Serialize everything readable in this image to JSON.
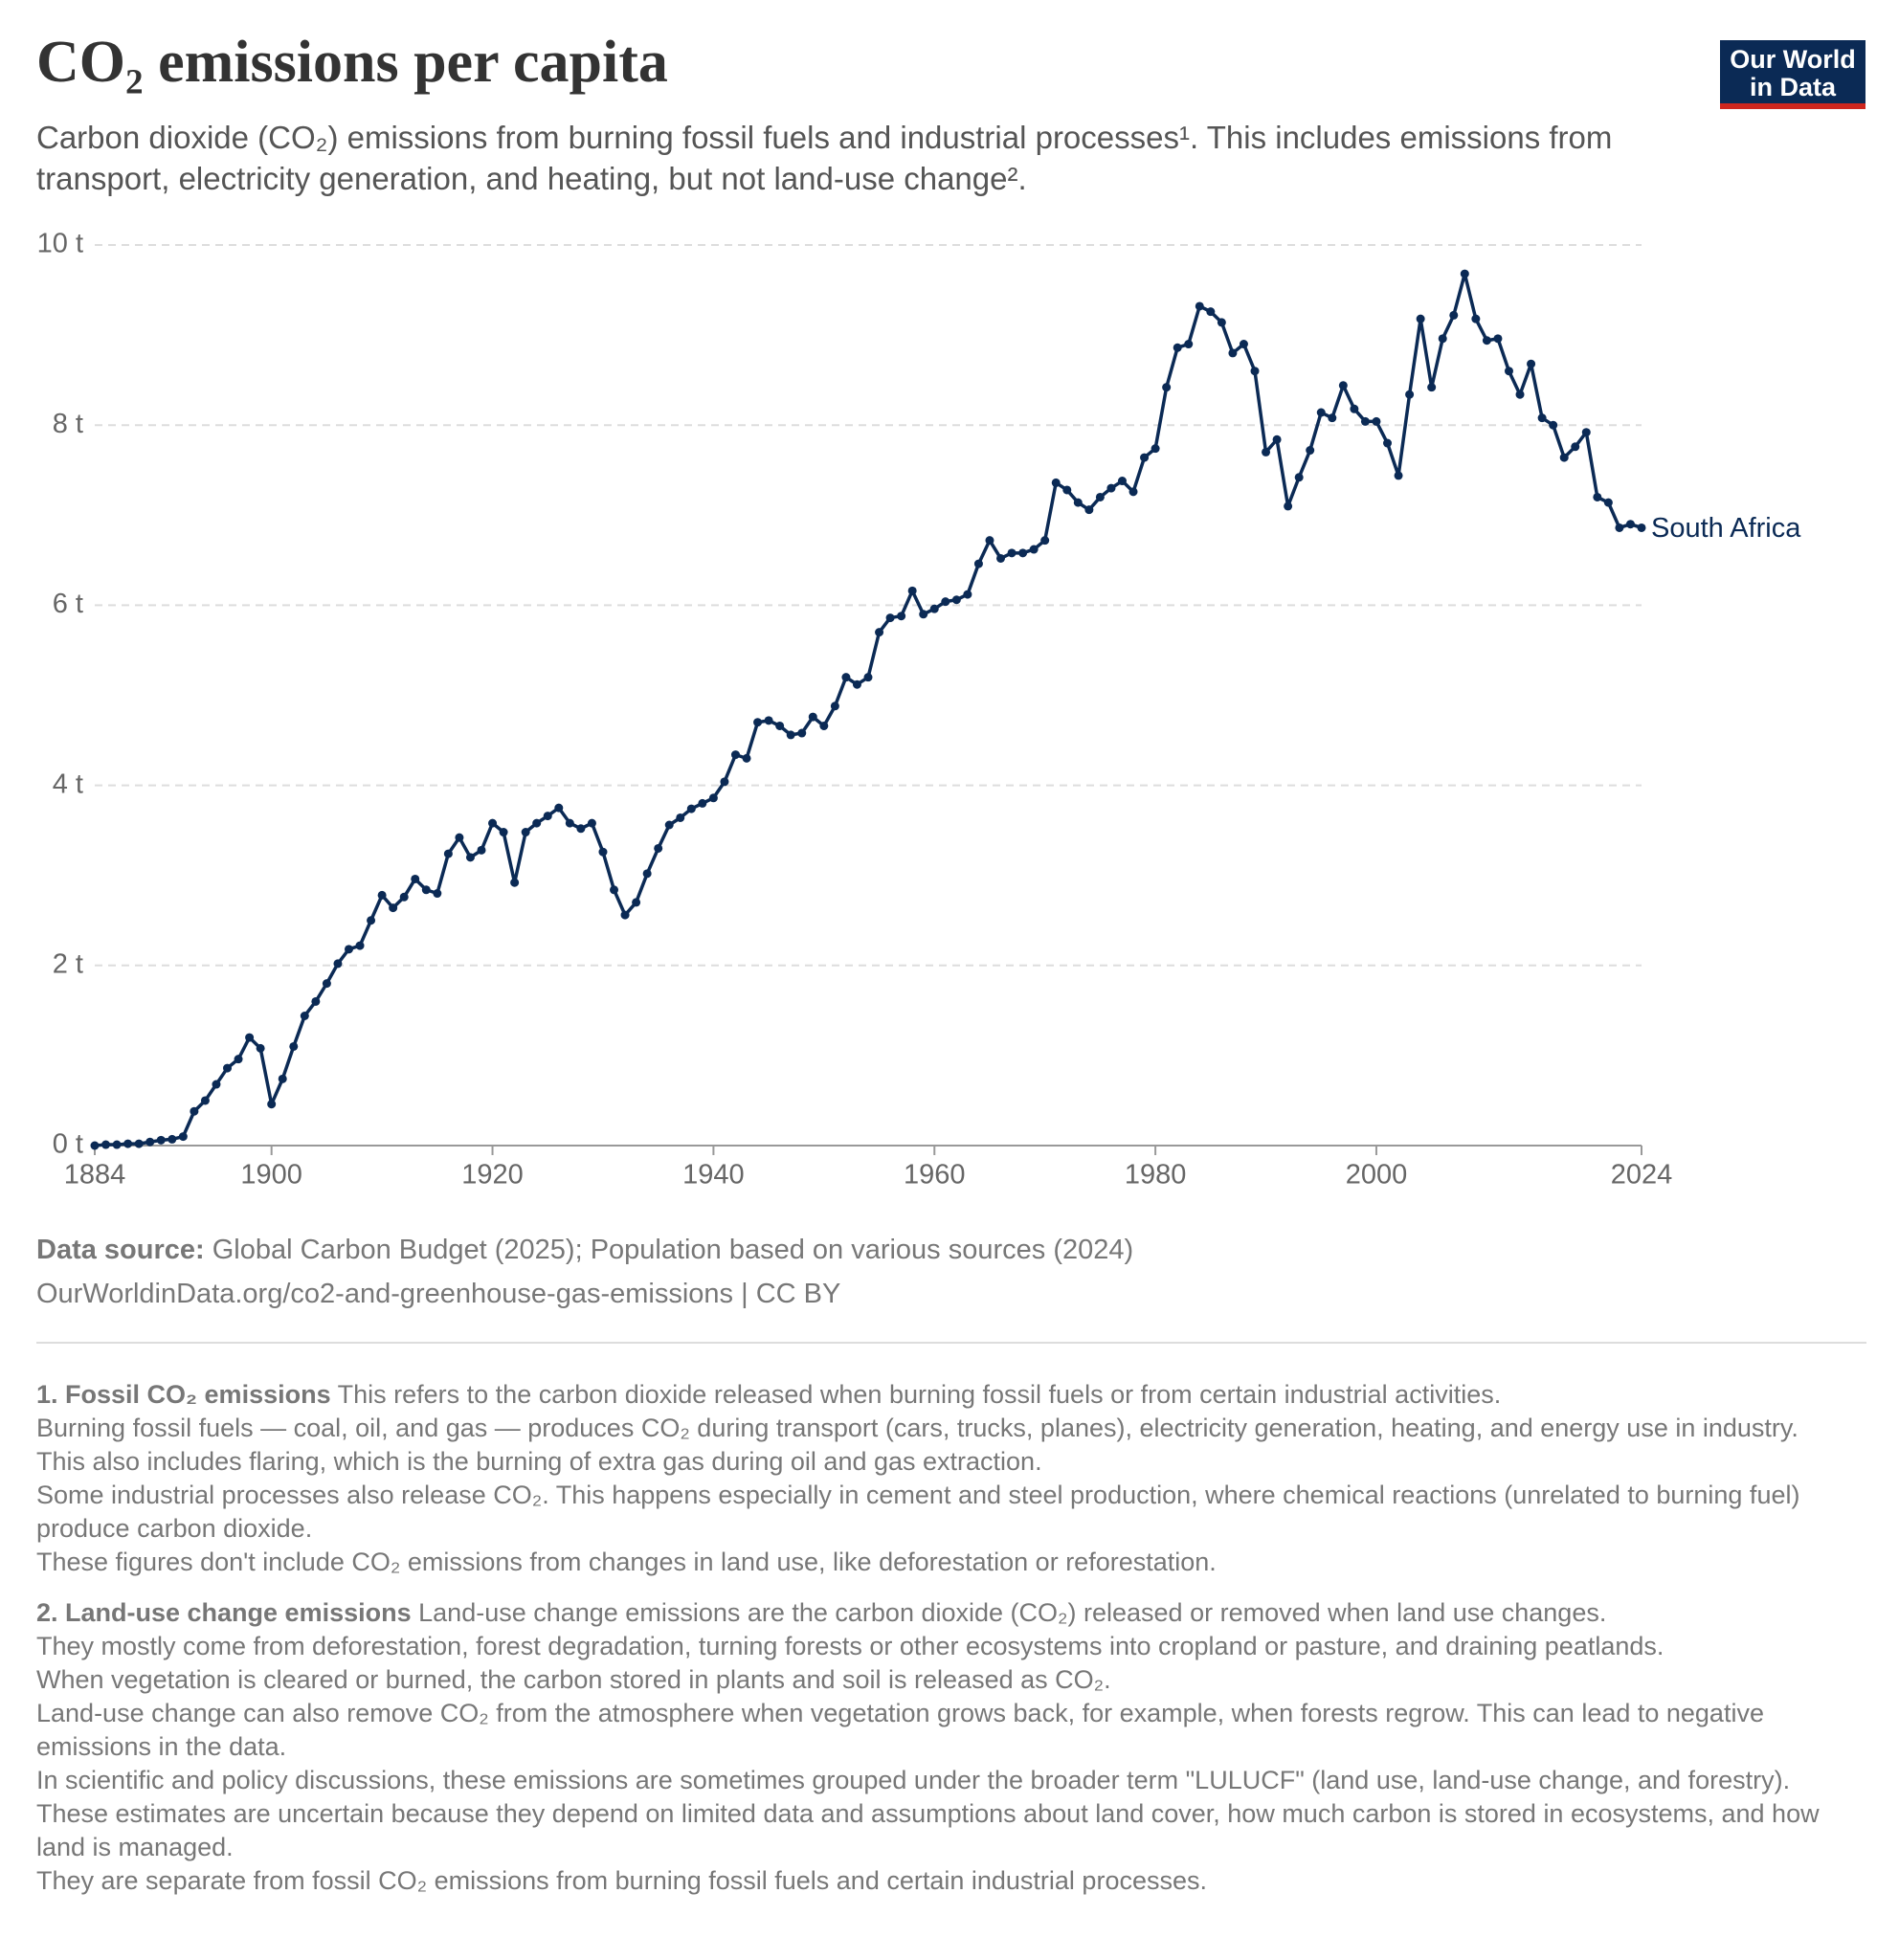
{
  "chart_data": {
    "type": "line",
    "title": "CO₂ emissions per capita",
    "subtitle": "Carbon dioxide (CO₂) emissions from burning fossil fuels and industrial processes¹. This includes emissions from transport, electricity generation, and heating, but not land-use change².",
    "logo": [
      "Our World",
      "in Data"
    ],
    "x": [
      1884,
      1885,
      1886,
      1887,
      1888,
      1889,
      1890,
      1891,
      1892,
      1893,
      1894,
      1895,
      1896,
      1897,
      1898,
      1899,
      1900,
      1901,
      1902,
      1903,
      1904,
      1905,
      1906,
      1907,
      1908,
      1909,
      1910,
      1911,
      1912,
      1913,
      1914,
      1915,
      1916,
      1917,
      1918,
      1919,
      1920,
      1921,
      1922,
      1923,
      1924,
      1925,
      1926,
      1927,
      1928,
      1929,
      1930,
      1931,
      1932,
      1933,
      1934,
      1935,
      1936,
      1937,
      1938,
      1939,
      1940,
      1941,
      1942,
      1943,
      1944,
      1945,
      1946,
      1947,
      1948,
      1949,
      1950,
      1951,
      1952,
      1953,
      1954,
      1955,
      1956,
      1957,
      1958,
      1959,
      1960,
      1961,
      1962,
      1963,
      1964,
      1965,
      1966,
      1967,
      1968,
      1969,
      1970,
      1971,
      1972,
      1973,
      1974,
      1975,
      1976,
      1977,
      1978,
      1979,
      1980,
      1981,
      1982,
      1983,
      1984,
      1985,
      1986,
      1987,
      1988,
      1989,
      1990,
      1991,
      1992,
      1993,
      1994,
      1995,
      1996,
      1997,
      1998,
      1999,
      2000,
      2001,
      2002,
      2003,
      2004,
      2005,
      2006,
      2007,
      2008,
      2009,
      2010,
      2011,
      2012,
      2013,
      2014,
      2015,
      2016,
      2017,
      2018,
      2019,
      2020,
      2021,
      2022,
      2023,
      2024
    ],
    "series": [
      {
        "name": "South Africa",
        "color": "#0b2a55",
        "values": [
          0.0,
          0.01,
          0.01,
          0.02,
          0.02,
          0.04,
          0.06,
          0.07,
          0.1,
          0.38,
          0.5,
          0.68,
          0.86,
          0.96,
          1.2,
          1.08,
          0.46,
          0.74,
          1.1,
          1.44,
          1.6,
          1.8,
          2.02,
          2.18,
          2.22,
          2.5,
          2.78,
          2.64,
          2.76,
          2.96,
          2.84,
          2.8,
          3.24,
          3.42,
          3.2,
          3.28,
          3.58,
          3.48,
          2.92,
          3.48,
          3.58,
          3.66,
          3.75,
          3.58,
          3.52,
          3.58,
          3.26,
          2.84,
          2.56,
          2.7,
          3.02,
          3.3,
          3.56,
          3.64,
          3.74,
          3.8,
          3.86,
          4.04,
          4.34,
          4.3,
          4.7,
          4.72,
          4.66,
          4.56,
          4.58,
          4.76,
          4.66,
          4.88,
          5.2,
          5.12,
          5.2,
          5.7,
          5.86,
          5.88,
          6.16,
          5.9,
          5.96,
          6.04,
          6.06,
          6.12,
          6.46,
          6.72,
          6.52,
          6.58,
          6.58,
          6.62,
          6.72,
          7.36,
          7.28,
          7.14,
          7.06,
          7.2,
          7.3,
          7.38,
          7.26,
          7.64,
          7.74,
          8.42,
          8.86,
          8.9,
          9.32,
          9.26,
          9.14,
          8.8,
          8.9,
          8.6,
          7.7,
          7.84,
          7.1,
          7.42,
          7.72,
          8.14,
          8.08,
          8.44,
          8.18,
          8.04,
          8.04,
          7.8,
          7.44,
          8.34,
          9.18,
          8.42,
          8.96,
          9.22,
          9.68,
          9.18,
          8.94,
          8.96,
          8.6,
          8.34,
          8.68,
          8.08,
          8.0,
          7.64,
          7.76,
          7.92,
          7.2,
          7.14,
          6.86,
          6.9,
          6.86
        ]
      }
    ],
    "xlim": [
      1884,
      2024
    ],
    "xticks": [
      1884,
      1900,
      1920,
      1940,
      1960,
      1980,
      2000,
      2024
    ],
    "ylim": [
      0,
      10
    ],
    "yticks": [
      {
        "value": 0,
        "label": "0 t"
      },
      {
        "value": 2,
        "label": "2 t"
      },
      {
        "value": 4,
        "label": "4 t"
      },
      {
        "value": 6,
        "label": "6 t"
      },
      {
        "value": 8,
        "label": "8 t"
      },
      {
        "value": 10,
        "label": "10 t"
      }
    ],
    "grid": true,
    "source_label": "Data source:",
    "source": "Global Carbon Budget (2025); Population based on various sources (2024)",
    "url": "OurWorldinData.org/co2-and-greenhouse-gas-emissions | CC BY"
  },
  "notes": [
    {
      "title": "1. Fossil CO₂ emissions",
      "paragraphs": [
        "This refers to the carbon dioxide released when burning fossil fuels or from certain industrial activities.",
        "Burning fossil fuels — coal, oil, and gas — produces CO₂ during transport (cars, trucks, planes), electricity generation, heating, and energy use in industry. This also includes flaring, which is the burning of extra gas during oil and gas extraction.",
        "Some industrial processes also release CO₂. This happens especially in cement and steel production, where chemical reactions (unrelated to burning fuel) produce carbon dioxide.",
        "These figures don't include CO₂ emissions from changes in land use, like deforestation or reforestation."
      ]
    },
    {
      "title": "2. Land-use change emissions",
      "paragraphs": [
        "Land-use change emissions are the carbon dioxide (CO₂) released or removed when land use changes.",
        "They mostly come from deforestation, forest degradation, turning forests or other ecosystems into cropland or pasture, and draining peatlands.",
        "When vegetation is cleared or burned, the carbon stored in plants and soil is released as CO₂.",
        "Land-use change can also remove CO₂ from the atmosphere when vegetation grows back, for example, when forests regrow. This can lead to negative emissions in the data.",
        "In scientific and policy discussions, these emissions are sometimes grouped under the broader term \"LULUCF\" (land use, land-use change, and forestry).",
        "These estimates are uncertain because they depend on limited data and assumptions about land cover, how much carbon is stored in ecosystems, and how land is managed.",
        "They are separate from fossil CO₂ emissions from burning fossil fuels and certain industrial processes."
      ]
    }
  ]
}
